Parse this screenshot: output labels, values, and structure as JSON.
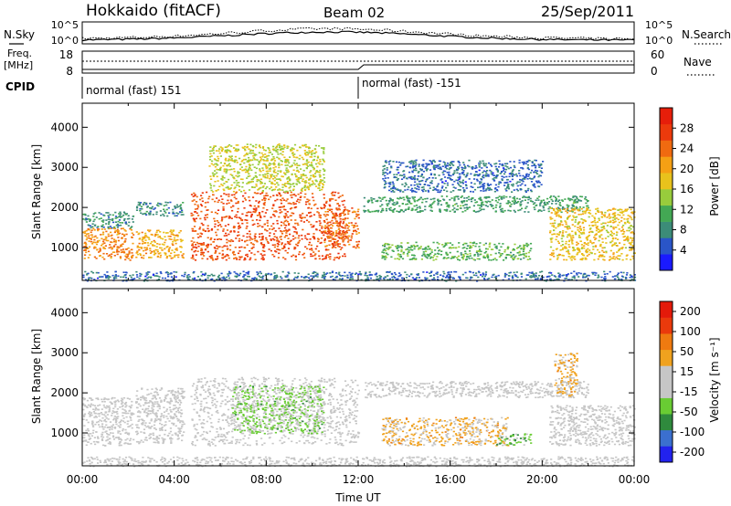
{
  "header": {
    "station": "Hokkaido (fitACF)",
    "beam": "Beam 02",
    "date": "25/Sep/2011"
  },
  "noise_panel": {
    "left_label": "N.Sky",
    "right_label": "N.Search",
    "left_ticks": [
      "10^5",
      "10^0"
    ],
    "right_ticks": [
      "10^5",
      "10^0"
    ]
  },
  "freq_panel": {
    "left_label_line1": "Freq.",
    "left_label_line2": "[MHz]",
    "right_label": "Nave",
    "left_ticks": [
      "18",
      "8"
    ],
    "right_ticks": [
      "60",
      "0"
    ]
  },
  "cpid": {
    "label": "CPID",
    "segments": [
      {
        "start_hour": 0,
        "text": "normal (fast) 151"
      },
      {
        "start_hour": 12,
        "text": "normal (fast) -151"
      }
    ]
  },
  "colors": {
    "power_scale": [
      "#1a1aff",
      "#2a55c8",
      "#3c8c78",
      "#43a854",
      "#98cc3c",
      "#e8c21c",
      "#f5a014",
      "#f06a10",
      "#ec3a0c",
      "#e61e0a"
    ],
    "velocity_scale": [
      "#2222ee",
      "#3b6fcf",
      "#2f8a3d",
      "#69cc33",
      "#c6c6c6",
      "#c6c6c6",
      "#f0a21e",
      "#ef7a10",
      "#ea3a0c",
      "#e41a0a"
    ],
    "noise_line": "#000000"
  },
  "chart_data": [
    {
      "type": "heatmap",
      "title": "",
      "ylabel": "Slant Range [km]",
      "xlabel": "",
      "ylim": [
        180,
        4600
      ],
      "xlim": [
        0,
        24
      ],
      "y_ticks": [
        "1000",
        "2000",
        "3000",
        "4000"
      ],
      "colorbar": {
        "label": "Power [dB]",
        "ticks": [
          "4",
          "8",
          "12",
          "16",
          "20",
          "24",
          "28"
        ],
        "range": [
          0,
          32
        ]
      },
      "bands": [
        {
          "t0": 0.0,
          "t1": 2.2,
          "r0": 700,
          "r1": 1500,
          "value": 22
        },
        {
          "t0": 0.0,
          "t1": 2.2,
          "r0": 1500,
          "r1": 1900,
          "value": 8
        },
        {
          "t0": 2.3,
          "t1": 4.4,
          "r0": 750,
          "r1": 1450,
          "value": 20
        },
        {
          "t0": 2.3,
          "t1": 4.4,
          "r0": 1800,
          "r1": 2150,
          "value": 8
        },
        {
          "t0": 4.7,
          "t1": 11.4,
          "r0": 700,
          "r1": 2400,
          "value": 26
        },
        {
          "t0": 5.5,
          "t1": 10.5,
          "r0": 2400,
          "r1": 3600,
          "value": 16
        },
        {
          "t0": 10.5,
          "t1": 12.0,
          "r0": 1000,
          "r1": 2000,
          "value": 24
        },
        {
          "t0": 12.2,
          "t1": 22.0,
          "r0": 1900,
          "r1": 2300,
          "value": 10
        },
        {
          "t0": 13.0,
          "t1": 19.5,
          "r0": 700,
          "r1": 1150,
          "value": 12
        },
        {
          "t0": 13.0,
          "t1": 20.0,
          "r0": 2400,
          "r1": 3200,
          "value": 6
        },
        {
          "t0": 20.3,
          "t1": 24.0,
          "r0": 700,
          "r1": 2000,
          "value": 18
        },
        {
          "t0": 0.0,
          "t1": 24.0,
          "r0": 180,
          "r1": 420,
          "value": 6
        }
      ]
    },
    {
      "type": "heatmap",
      "title": "",
      "ylabel": "Slant Range [km]",
      "xlabel": "Time UT",
      "ylim": [
        180,
        4600
      ],
      "xlim": [
        0,
        24
      ],
      "y_ticks": [
        "1000",
        "2000",
        "3000",
        "4000"
      ],
      "x_ticks": [
        "00:00",
        "04:00",
        "08:00",
        "12:00",
        "16:00",
        "20:00",
        "00:00"
      ],
      "colorbar": {
        "label": "Velocity [m s⁻¹]",
        "ticks": [
          "200",
          "100",
          "50",
          "15",
          "-15",
          "-50",
          "-100",
          "-200"
        ],
        "range": [
          -250,
          250
        ]
      },
      "bands": [
        {
          "t0": 0.0,
          "t1": 2.2,
          "r0": 700,
          "r1": 1900,
          "value": 0
        },
        {
          "t0": 2.3,
          "t1": 4.4,
          "r0": 750,
          "r1": 2150,
          "value": 0
        },
        {
          "t0": 4.7,
          "t1": 12.0,
          "r0": 700,
          "r1": 2400,
          "value": -5
        },
        {
          "t0": 6.5,
          "t1": 10.5,
          "r0": 1000,
          "r1": 2200,
          "value": -60
        },
        {
          "t0": 12.2,
          "t1": 22.0,
          "r0": 1900,
          "r1": 2300,
          "value": 0
        },
        {
          "t0": 13.0,
          "t1": 18.5,
          "r0": 700,
          "r1": 1400,
          "value": 60
        },
        {
          "t0": 18.0,
          "t1": 19.5,
          "r0": 700,
          "r1": 1000,
          "value": -70
        },
        {
          "t0": 20.3,
          "t1": 24.0,
          "r0": 700,
          "r1": 1700,
          "value": 0
        },
        {
          "t0": 20.5,
          "t1": 21.5,
          "r0": 1900,
          "r1": 3000,
          "value": 60
        },
        {
          "t0": 0.0,
          "t1": 24.0,
          "r0": 180,
          "r1": 420,
          "value": 0
        }
      ]
    }
  ]
}
